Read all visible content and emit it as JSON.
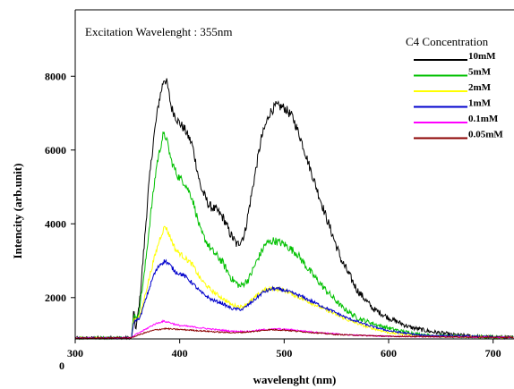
{
  "chart_data": {
    "type": "line",
    "title": "",
    "subtitle": "Excitation Wavelenght : 355nm",
    "xlabel": "wavelenght (nm)",
    "ylabel": "Intencity (arb.unit)",
    "xlim": [
      300,
      720
    ],
    "ylim": [
      880,
      9800
    ],
    "x_ticks": [
      300,
      400,
      500,
      600,
      700
    ],
    "x_tick_labels": [
      "300",
      "400",
      "500",
      "600",
      "700"
    ],
    "y_ticks": [
      2000,
      4000,
      6000,
      8000
    ],
    "y_tick_labels": [
      "2000",
      "4000",
      "6000",
      "8000"
    ],
    "origin_label": "0",
    "legend_title": "C4 Concentration",
    "legend_position": "top-right",
    "grid": false,
    "series": [
      {
        "name": "10mM",
        "color": "#000000",
        "noise": 130,
        "points": [
          [
            300,
            900
          ],
          [
            354,
            910
          ],
          [
            356,
            1650
          ],
          [
            358,
            1100
          ],
          [
            362,
            2000
          ],
          [
            366,
            3400
          ],
          [
            370,
            4900
          ],
          [
            375,
            6300
          ],
          [
            380,
            7300
          ],
          [
            385,
            7950
          ],
          [
            388,
            7800
          ],
          [
            392,
            7150
          ],
          [
            398,
            6800
          ],
          [
            405,
            6550
          ],
          [
            412,
            6150
          ],
          [
            420,
            5000
          ],
          [
            428,
            4500
          ],
          [
            436,
            4350
          ],
          [
            442,
            4150
          ],
          [
            448,
            3750
          ],
          [
            455,
            3420
          ],
          [
            462,
            3700
          ],
          [
            470,
            5000
          ],
          [
            478,
            6300
          ],
          [
            486,
            7000
          ],
          [
            492,
            7200
          ],
          [
            500,
            7150
          ],
          [
            508,
            6900
          ],
          [
            516,
            6300
          ],
          [
            526,
            5400
          ],
          [
            540,
            4200
          ],
          [
            555,
            3000
          ],
          [
            570,
            2200
          ],
          [
            585,
            1700
          ],
          [
            600,
            1450
          ],
          [
            620,
            1200
          ],
          [
            640,
            1080
          ],
          [
            660,
            1000
          ],
          [
            690,
            940
          ],
          [
            720,
            920
          ]
        ]
      },
      {
        "name": "5mM",
        "color": "#00c000",
        "noise": 110,
        "points": [
          [
            300,
            900
          ],
          [
            354,
            910
          ],
          [
            356,
            1550
          ],
          [
            360,
            1450
          ],
          [
            366,
            2600
          ],
          [
            372,
            4200
          ],
          [
            378,
            5600
          ],
          [
            384,
            6400
          ],
          [
            387,
            6350
          ],
          [
            392,
            5700
          ],
          [
            398,
            5300
          ],
          [
            405,
            5100
          ],
          [
            412,
            4700
          ],
          [
            420,
            3800
          ],
          [
            430,
            3300
          ],
          [
            440,
            3000
          ],
          [
            450,
            2500
          ],
          [
            458,
            2300
          ],
          [
            466,
            2500
          ],
          [
            474,
            3000
          ],
          [
            482,
            3450
          ],
          [
            490,
            3550
          ],
          [
            500,
            3450
          ],
          [
            512,
            3200
          ],
          [
            525,
            2700
          ],
          [
            540,
            2200
          ],
          [
            555,
            1750
          ],
          [
            570,
            1450
          ],
          [
            590,
            1250
          ],
          [
            610,
            1100
          ],
          [
            630,
            1000
          ],
          [
            660,
            950
          ],
          [
            720,
            920
          ]
        ]
      },
      {
        "name": "2mM",
        "color": "#ffff00",
        "noise": 70,
        "points": [
          [
            300,
            900
          ],
          [
            354,
            910
          ],
          [
            356,
            1400
          ],
          [
            362,
            1500
          ],
          [
            368,
            2200
          ],
          [
            375,
            3000
          ],
          [
            381,
            3600
          ],
          [
            386,
            3950
          ],
          [
            390,
            3700
          ],
          [
            396,
            3300
          ],
          [
            404,
            3100
          ],
          [
            412,
            2900
          ],
          [
            420,
            2500
          ],
          [
            430,
            2200
          ],
          [
            440,
            2000
          ],
          [
            450,
            1800
          ],
          [
            460,
            1750
          ],
          [
            470,
            1950
          ],
          [
            480,
            2200
          ],
          [
            490,
            2250
          ],
          [
            500,
            2200
          ],
          [
            515,
            2000
          ],
          [
            530,
            1800
          ],
          [
            545,
            1600
          ],
          [
            560,
            1400
          ],
          [
            580,
            1200
          ],
          [
            600,
            1050
          ],
          [
            630,
            960
          ],
          [
            720,
            920
          ]
        ]
      },
      {
        "name": "1mM",
        "color": "#0000cc",
        "noise": 60,
        "points": [
          [
            300,
            900
          ],
          [
            354,
            910
          ],
          [
            356,
            1350
          ],
          [
            362,
            1450
          ],
          [
            368,
            2000
          ],
          [
            375,
            2600
          ],
          [
            381,
            2900
          ],
          [
            386,
            3000
          ],
          [
            390,
            2900
          ],
          [
            396,
            2700
          ],
          [
            404,
            2600
          ],
          [
            412,
            2400
          ],
          [
            420,
            2150
          ],
          [
            430,
            1950
          ],
          [
            440,
            1850
          ],
          [
            450,
            1700
          ],
          [
            460,
            1680
          ],
          [
            470,
            1900
          ],
          [
            480,
            2150
          ],
          [
            490,
            2250
          ],
          [
            500,
            2200
          ],
          [
            515,
            2050
          ],
          [
            530,
            1850
          ],
          [
            545,
            1650
          ],
          [
            560,
            1450
          ],
          [
            580,
            1250
          ],
          [
            600,
            1100
          ],
          [
            630,
            980
          ],
          [
            720,
            920
          ]
        ]
      },
      {
        "name": "0.1mM",
        "color": "#ff00ff",
        "noise": 45,
        "points": [
          [
            300,
            900
          ],
          [
            354,
            910
          ],
          [
            358,
            1000
          ],
          [
            366,
            1120
          ],
          [
            376,
            1280
          ],
          [
            384,
            1360
          ],
          [
            390,
            1330
          ],
          [
            398,
            1250
          ],
          [
            408,
            1220
          ],
          [
            420,
            1180
          ],
          [
            435,
            1130
          ],
          [
            450,
            1090
          ],
          [
            465,
            1080
          ],
          [
            480,
            1130
          ],
          [
            495,
            1150
          ],
          [
            510,
            1120
          ],
          [
            530,
            1060
          ],
          [
            560,
            990
          ],
          [
            600,
            950
          ],
          [
            720,
            920
          ]
        ]
      },
      {
        "name": "0.05mM",
        "color": "#8b0000",
        "noise": 40,
        "points": [
          [
            300,
            900
          ],
          [
            354,
            910
          ],
          [
            358,
            960
          ],
          [
            366,
            1040
          ],
          [
            376,
            1120
          ],
          [
            386,
            1160
          ],
          [
            396,
            1140
          ],
          [
            410,
            1120
          ],
          [
            425,
            1090
          ],
          [
            440,
            1060
          ],
          [
            455,
            1050
          ],
          [
            470,
            1080
          ],
          [
            485,
            1130
          ],
          [
            500,
            1120
          ],
          [
            520,
            1070
          ],
          [
            550,
            1000
          ],
          [
            600,
            950
          ],
          [
            720,
            920
          ]
        ]
      }
    ]
  }
}
